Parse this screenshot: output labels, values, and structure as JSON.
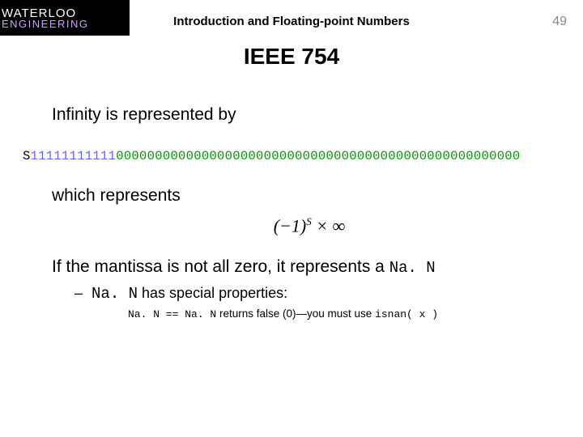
{
  "header": {
    "logo_top": "WATERLOO",
    "logo_bottom": "ENGINEERING",
    "subtitle": "Introduction and Floating-point Numbers",
    "slide_number": "49"
  },
  "title": "IEEE 754",
  "body": {
    "p1": "Infinity is represented by",
    "bits": {
      "sign": "S",
      "exponent": "11111111111",
      "mantissa": "0000000000000000000000000000000000000000000000000000"
    },
    "p2": "which represents",
    "formula": {
      "base": "(−1)",
      "exp": "S",
      "tail": " × ∞"
    },
    "p3_a": "If the mantissa is not all zero, it represents a ",
    "p3_b": "Na. N",
    "bullet": {
      "dash": "–",
      "nan": "Na. N",
      "text": " has special properties:"
    },
    "sub": {
      "a": "Na. N == Na. N",
      "b": " returns false (0)—you must use ",
      "c": "isnan( x )"
    }
  },
  "colors": {
    "exponent": "#6666ff",
    "mantissa": "#009900",
    "logo_bottom": "#cf9fff",
    "slide_num": "#888888"
  }
}
